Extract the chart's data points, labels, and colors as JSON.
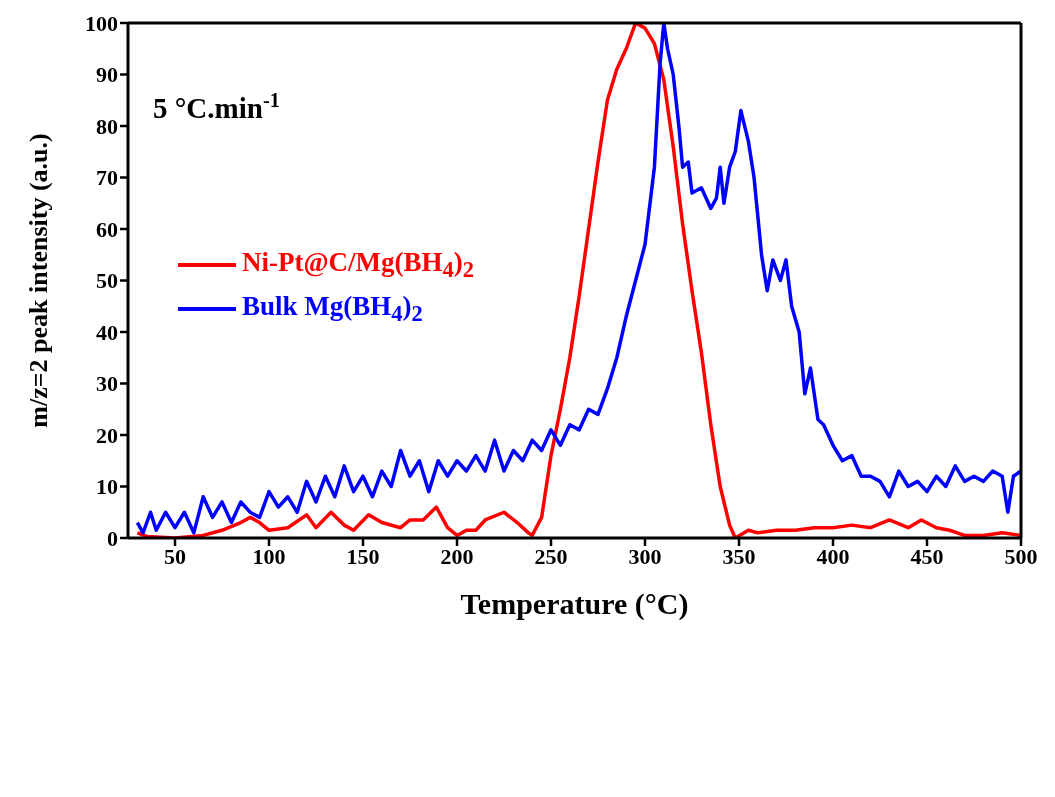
{
  "chart_data": {
    "type": "line",
    "xlabel": "Temperature (°C)",
    "ylabel": "m/z=2 peak intensity (a.u.)",
    "annotations": [
      "5 °C.min$^{-1}$"
    ],
    "xlim": [
      25,
      500
    ],
    "xticks": [
      50,
      100,
      150,
      200,
      250,
      300,
      350,
      400,
      450,
      500
    ],
    "ylim": [
      0,
      100
    ],
    "yticks": [
      0,
      10,
      20,
      30,
      40,
      50,
      60,
      70,
      80,
      90,
      100
    ],
    "legend": "left",
    "marker": "none",
    "line_style": "solid",
    "series": [
      {
        "name": "Ni-Pt@C/Mg(BH$_{4}$)$_{2}$",
        "color": "#ff0000",
        "x": [
          30,
          35,
          50,
          65,
          75,
          85,
          90,
          95,
          100,
          110,
          120,
          125,
          133,
          140,
          145,
          153,
          160,
          170,
          175,
          182,
          189,
          195,
          200,
          205,
          210,
          215,
          225,
          232,
          238,
          240,
          245,
          250,
          255,
          260,
          265,
          270,
          275,
          280,
          285,
          290,
          295,
          300,
          305,
          310,
          315,
          320,
          325,
          330,
          335,
          340,
          345,
          348,
          355,
          360,
          370,
          380,
          390,
          400,
          410,
          420,
          430,
          440,
          447,
          455,
          462,
          470,
          480,
          490,
          500
        ],
        "values": [
          1,
          0.3,
          0,
          0.5,
          1.5,
          3,
          4,
          3,
          1.5,
          2,
          4.5,
          2,
          5,
          2.5,
          1.5,
          4.5,
          3,
          2,
          3.5,
          3.5,
          6,
          2,
          0.5,
          1.5,
          1.5,
          3.5,
          5,
          3,
          1,
          0.5,
          4,
          16,
          25,
          35,
          47,
          60,
          73,
          85,
          91,
          95,
          100,
          99,
          96,
          89,
          76,
          61,
          48,
          36,
          22,
          10,
          2.5,
          0,
          1.5,
          1,
          1.5,
          1.5,
          2,
          2,
          2.5,
          2,
          3.5,
          2,
          3.5,
          2,
          1.5,
          0.5,
          0.5,
          1,
          0.5
        ]
      },
      {
        "name": "Bulk Mg(BH$_{4}$)$_{2}$",
        "color": "#0000ff",
        "x": [
          30,
          33,
          37,
          40,
          45,
          50,
          55,
          60,
          65,
          70,
          75,
          80,
          85,
          90,
          95,
          100,
          105,
          110,
          115,
          120,
          125,
          130,
          135,
          140,
          145,
          150,
          155,
          160,
          165,
          170,
          175,
          180,
          185,
          190,
          195,
          200,
          205,
          210,
          215,
          220,
          225,
          230,
          235,
          240,
          245,
          250,
          255,
          260,
          265,
          270,
          275,
          280,
          285,
          290,
          295,
          300,
          305,
          308,
          310,
          312,
          315,
          318,
          320,
          323,
          325,
          330,
          335,
          338,
          340,
          342,
          345,
          348,
          351,
          355,
          358,
          362,
          365,
          368,
          372,
          375,
          378,
          382,
          385,
          388,
          392,
          395,
          400,
          405,
          410,
          415,
          420,
          425,
          430,
          435,
          440,
          445,
          450,
          455,
          460,
          465,
          470,
          475,
          480,
          485,
          490,
          493,
          496,
          500
        ],
        "values": [
          3,
          1,
          5,
          1.5,
          5,
          2,
          5,
          1,
          8,
          4,
          7,
          3,
          7,
          5,
          4,
          9,
          6,
          8,
          5,
          11,
          7,
          12,
          8,
          14,
          9,
          12,
          8,
          13,
          10,
          17,
          12,
          15,
          9,
          15,
          12,
          15,
          13,
          16,
          13,
          19,
          13,
          17,
          15,
          19,
          17,
          21,
          18,
          22,
          21,
          25,
          24,
          29,
          35,
          43,
          50,
          57,
          72,
          92,
          100,
          95,
          90,
          80,
          72,
          73,
          67,
          68,
          64,
          66,
          72,
          65,
          72,
          75,
          83,
          77,
          70,
          55,
          48,
          54,
          50,
          54,
          45,
          40,
          28,
          33,
          23,
          22,
          18,
          15,
          16,
          12,
          12,
          11,
          8,
          13,
          10,
          11,
          9,
          12,
          10,
          14,
          11,
          12,
          11,
          13,
          12,
          5,
          12,
          13
        ]
      }
    ]
  }
}
